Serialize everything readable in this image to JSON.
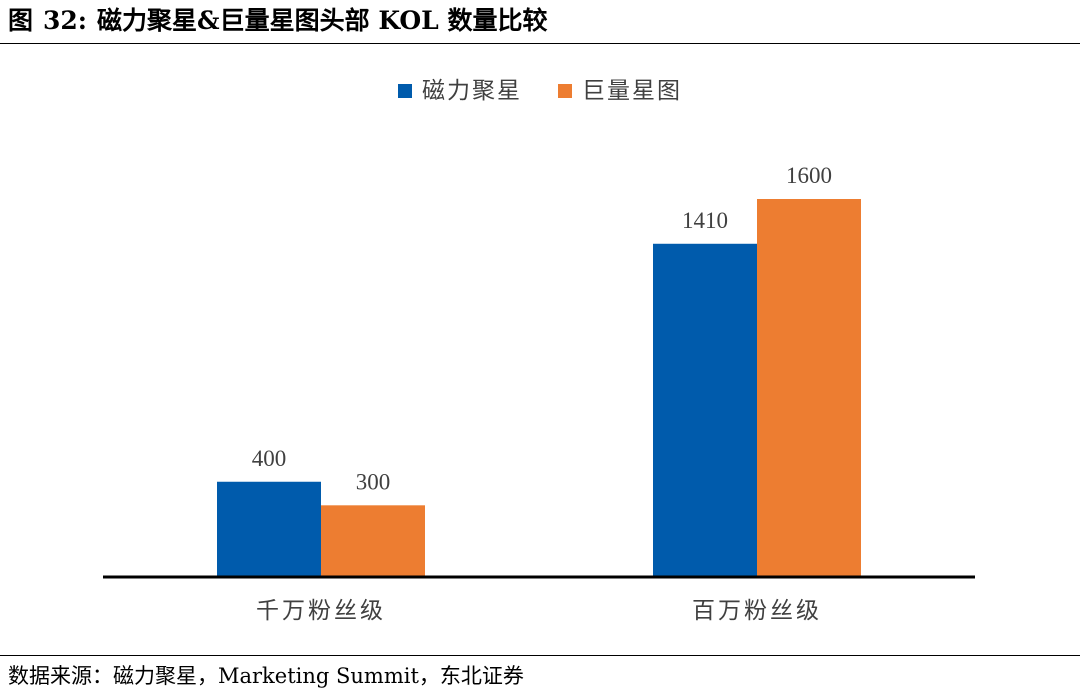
{
  "figure": {
    "label": "图",
    "number": "32:",
    "title": "磁力聚星&巨量星图头部 KOL 数量比较"
  },
  "source": {
    "text": "数据来源：磁力聚星，Marketing Summit，东北证券"
  },
  "colors": {
    "series_1": "#005BAC",
    "series_2": "#ED7D31",
    "axis": "#000000"
  },
  "chart_data": {
    "type": "bar",
    "categories": [
      "千万粉丝级",
      "百万粉丝级"
    ],
    "series": [
      {
        "name": "磁力聚星",
        "values": [
          400,
          1410
        ]
      },
      {
        "name": "巨量星图",
        "values": [
          300,
          1600
        ]
      }
    ],
    "data_labels": true,
    "legend": "top-center",
    "grid": false,
    "y_axis_visible": false,
    "ylim": [
      0,
      1600
    ]
  }
}
